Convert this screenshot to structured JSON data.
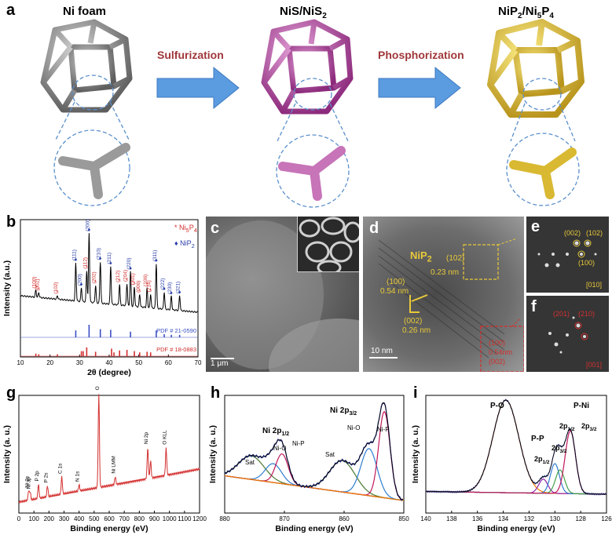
{
  "panel_labels": {
    "a": "a",
    "b": "b",
    "c": "c",
    "d": "d",
    "e": "e",
    "f": "f",
    "g": "g",
    "h": "h",
    "i": "i"
  },
  "panel_a": {
    "titles": {
      "ni_foam": "Ni foam",
      "nis": "NiS/NiS",
      "nis_sub": "2",
      "nip": "NiP",
      "nip_sub1": "2",
      "nip_mid": "/Ni",
      "nip_sub2": "5",
      "nip_p": "P",
      "nip_sub3": "4"
    },
    "arrows": {
      "sulfurization": "Sulfurization",
      "phosphorization": "Phosphorization"
    },
    "colors": {
      "ni": "#8a8a8a",
      "nis": "#c25fb0",
      "nip": "#e8cc4a",
      "arrow": "#4f8fd8"
    }
  },
  "panel_c": {
    "scale_bar": "1 μm"
  },
  "panel_d": {
    "phase": "NiP",
    "phase_sub": "2",
    "annotations": [
      "(102)",
      "0.23 nm",
      "(100)",
      "0.54 nm",
      "(002)",
      "0.26 nm"
    ],
    "inset_lines": [
      "(100)",
      "0.54nm",
      "(002)"
    ],
    "scale_bar": "10 nm"
  },
  "panel_e": {
    "spots": [
      "(002)",
      "(102)",
      "(100)"
    ],
    "zone": "[010]"
  },
  "panel_f": {
    "spots": [
      "(201)",
      "(210)"
    ],
    "zone": "[001]"
  },
  "chart_data": [
    {
      "panel": "b",
      "type": "line",
      "title": "",
      "xlabel": "2θ (degree)",
      "ylabel": "Intensity (a.u.)",
      "xlim": [
        10,
        70
      ],
      "xticks": [
        "10",
        "20",
        "30",
        "40",
        "50",
        "60",
        "70"
      ],
      "legend": [
        {
          "symbol": "*",
          "text": "Ni",
          "sub": "5",
          "text2": "P",
          "sub2": "4",
          "color": "#d32f2f"
        },
        {
          "symbol": "♦",
          "text": "NiP",
          "sub": "2",
          "text2": "",
          "sub2": "",
          "color": "#2a3fa8"
        }
      ],
      "peaks": [
        {
          "x": 15.2,
          "h": 0.1,
          "label": "(100)",
          "phase": "Ni5P4"
        },
        {
          "x": 16.2,
          "h": 0.07,
          "label": "(002)",
          "phase": "Ni5P4"
        },
        {
          "x": 22.5,
          "h": 0.05,
          "label": "(102)",
          "phase": "Ni5P4"
        },
        {
          "x": 28.7,
          "h": 0.55,
          "label": "(111)",
          "phase": "NiP2"
        },
        {
          "x": 30.6,
          "h": 0.2,
          "label": "(200)",
          "phase": "NiP2"
        },
        {
          "x": 32.4,
          "h": 0.45,
          "label": "(112)",
          "phase": "Ni5P4"
        },
        {
          "x": 33.2,
          "h": 1.0,
          "label": "(200)",
          "phase": "NiP2"
        },
        {
          "x": 35.4,
          "h": 0.25,
          "label": "(202)",
          "phase": "Ni5P4"
        },
        {
          "x": 37.0,
          "h": 0.6,
          "label": "(210)",
          "phase": "NiP2"
        },
        {
          "x": 40.5,
          "h": 0.55,
          "label": "(211)",
          "phase": "NiP2"
        },
        {
          "x": 43.5,
          "h": 0.3,
          "label": "(212)",
          "phase": "Ni5P4"
        },
        {
          "x": 46.0,
          "h": 0.32,
          "label": "(204)",
          "phase": "Ni5P4"
        },
        {
          "x": 47.2,
          "h": 0.5,
          "label": "(220)",
          "phase": "NiP2"
        },
        {
          "x": 48.5,
          "h": 0.28,
          "label": "(301)",
          "phase": "Ni5P4"
        },
        {
          "x": 50.3,
          "h": 0.18,
          "label": "(006)",
          "phase": "Ni5P4"
        },
        {
          "x": 52.8,
          "h": 0.28,
          "label": "(106)",
          "phase": "Ni5P4"
        },
        {
          "x": 54.0,
          "h": 0.2,
          "label": "(214)",
          "phase": "Ni5P4"
        },
        {
          "x": 55.9,
          "h": 0.65,
          "label": "(311)",
          "phase": "NiP2"
        },
        {
          "x": 58.6,
          "h": 0.25,
          "label": "(222)",
          "phase": "NiP2"
        },
        {
          "x": 61.0,
          "h": 0.2,
          "label": "(230)",
          "phase": "NiP2"
        },
        {
          "x": 63.8,
          "h": 0.22,
          "label": "(321)",
          "phase": "NiP2"
        }
      ],
      "references": [
        {
          "name": "PDF # 21-0590",
          "color": "#3b4fc4",
          "x": [
            28.7,
            33.2,
            37.0,
            40.5,
            47.2,
            55.9,
            58.6,
            61.0,
            63.8
          ],
          "h": [
            0.55,
            1.0,
            0.65,
            0.6,
            0.45,
            0.55,
            0.25,
            0.2,
            0.2
          ]
        },
        {
          "name": "PDF # 18-0883",
          "color": "#d32f2f",
          "x": [
            15.2,
            16.2,
            22.5,
            30.6,
            31.2,
            32.4,
            35.4,
            40.8,
            41.6,
            43.5,
            46.0,
            48.5,
            50.3,
            52.8,
            54.0
          ],
          "h": [
            0.2,
            0.15,
            0.15,
            0.4,
            0.4,
            0.7,
            0.35,
            0.6,
            0.3,
            0.45,
            0.5,
            0.4,
            0.3,
            0.35,
            0.3
          ]
        }
      ]
    },
    {
      "panel": "g",
      "type": "line",
      "xlabel": "Binding energy (eV)",
      "ylabel": "Intensity (a. u.)",
      "xlim": [
        0,
        1200
      ],
      "xticks": [
        "0",
        "100",
        "200",
        "300",
        "400",
        "500",
        "600",
        "700",
        "800",
        "900",
        "1000",
        "1100",
        "1200"
      ],
      "series": [
        {
          "name": "survey",
          "color": "#d32f2f"
        }
      ],
      "peak_labels": [
        {
          "x": 65,
          "label": "Ni 3s"
        },
        {
          "x": 75,
          "label": "Ni 3p"
        },
        {
          "x": 130,
          "label": "P 2p"
        },
        {
          "x": 190,
          "label": "P 2s"
        },
        {
          "x": 285,
          "label": "C 1s"
        },
        {
          "x": 400,
          "label": "N 1s"
        },
        {
          "x": 531,
          "label": "O 1s"
        },
        {
          "x": 640,
          "label": "Ni LMM"
        },
        {
          "x": 856,
          "label": "Ni 2p"
        },
        {
          "x": 978,
          "label": "O KLL"
        }
      ]
    },
    {
      "panel": "h",
      "type": "line",
      "xlabel": "Binding energy (eV)",
      "ylabel": "Intensity (a. u.)",
      "xlim": [
        885,
        850
      ],
      "xticks": [
        "880",
        "870",
        "860",
        "850"
      ],
      "labels": {
        "ni2p12": "Ni 2p",
        "ni2p12_sub": "1/2",
        "ni2p32": "Ni 2p",
        "ni2p32_sub": "3/2",
        "sat1": "Sat",
        "nio1": "Ni-O",
        "nip1": "Ni-P",
        "sat2": "Sat",
        "nio2": "Ni-O",
        "nip2": "Ni-P"
      },
      "components": [
        {
          "center": 879.8,
          "color": "#4a7a30"
        },
        {
          "center": 875.5,
          "color": "#2e7dd1"
        },
        {
          "center": 873.8,
          "color": "#c2185b"
        },
        {
          "center": 862.0,
          "color": "#4a7a30"
        },
        {
          "center": 856.8,
          "color": "#2e7dd1"
        },
        {
          "center": 853.8,
          "color": "#c2185b"
        }
      ]
    },
    {
      "panel": "i",
      "type": "line",
      "xlabel": "Binding energy (eV)",
      "ylabel": "Intensity (a. u.)",
      "xlim": [
        140,
        126
      ],
      "xticks": [
        "140",
        "138",
        "136",
        "134",
        "132",
        "130",
        "128",
        "126"
      ],
      "labels": {
        "po": "P-O",
        "pni": "P-Ni",
        "pp": "P-P",
        "p12a": "2p",
        "p12a_sub": "1/2",
        "p32a": "2p",
        "p32a_sub": "3/2",
        "p12b": "2p",
        "p12b_sub": "1/2",
        "p32b": "2p",
        "p32b_sub": "3/2"
      },
      "components": [
        {
          "center": 133.8,
          "color": "#f57c00"
        },
        {
          "center": 130.9,
          "color": "#8e24aa"
        },
        {
          "center": 130.0,
          "color": "#2e7dd1"
        },
        {
          "center": 129.6,
          "color": "#43a047"
        },
        {
          "center": 128.8,
          "color": "#c2185b"
        }
      ]
    }
  ]
}
